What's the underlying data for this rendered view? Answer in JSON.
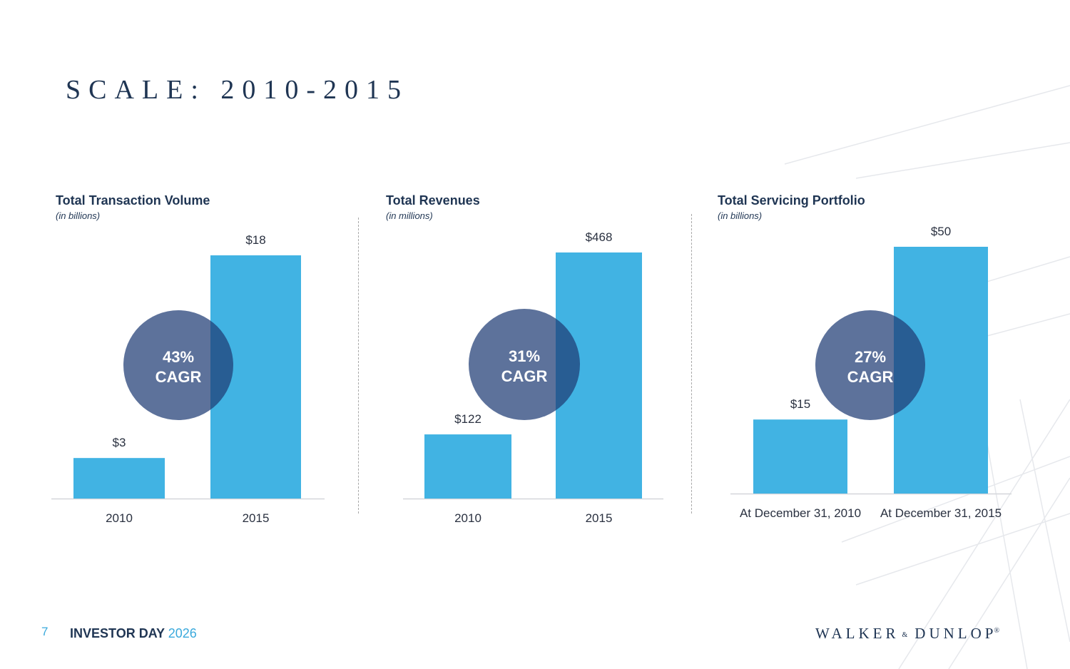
{
  "title": "SCALE: 2010-2015",
  "colors": {
    "bar": "#41b3e3",
    "circle": "#1f3c75",
    "title": "#1f3553",
    "accent": "#3aa9dc"
  },
  "chart_data": [
    {
      "type": "bar",
      "title": "Total Transaction Volume",
      "subtitle": "(in billions)",
      "categories": [
        "2010",
        "2015"
      ],
      "values": [
        3,
        18
      ],
      "value_labels": [
        "$3",
        "$18"
      ],
      "ylim": [
        0,
        18
      ],
      "grid": false,
      "annotation": {
        "line1": "43%",
        "line2": "CAGR"
      }
    },
    {
      "type": "bar",
      "title": "Total Revenues",
      "subtitle": "(in millions)",
      "categories": [
        "2010",
        "2015"
      ],
      "values": [
        122,
        468
      ],
      "value_labels": [
        "$122",
        "$468"
      ],
      "ylim": [
        0,
        468
      ],
      "grid": false,
      "annotation": {
        "line1": "31%",
        "line2": "CAGR"
      }
    },
    {
      "type": "bar",
      "title": "Total Servicing Portfolio",
      "subtitle": "(in billions)",
      "categories": [
        "At December 31, 2010",
        "At December 31, 2015"
      ],
      "values": [
        15,
        50
      ],
      "value_labels": [
        "$15",
        "$50"
      ],
      "ylim": [
        0,
        50
      ],
      "grid": false,
      "annotation": {
        "line1": "27%",
        "line2": "CAGR"
      }
    }
  ],
  "footer": {
    "page_number": "7",
    "event": "INVESTOR DAY",
    "event_year": "2026",
    "logo_left": "WALKER",
    "logo_amp": "&",
    "logo_right": "DUNLOP",
    "logo_reg": "®"
  }
}
